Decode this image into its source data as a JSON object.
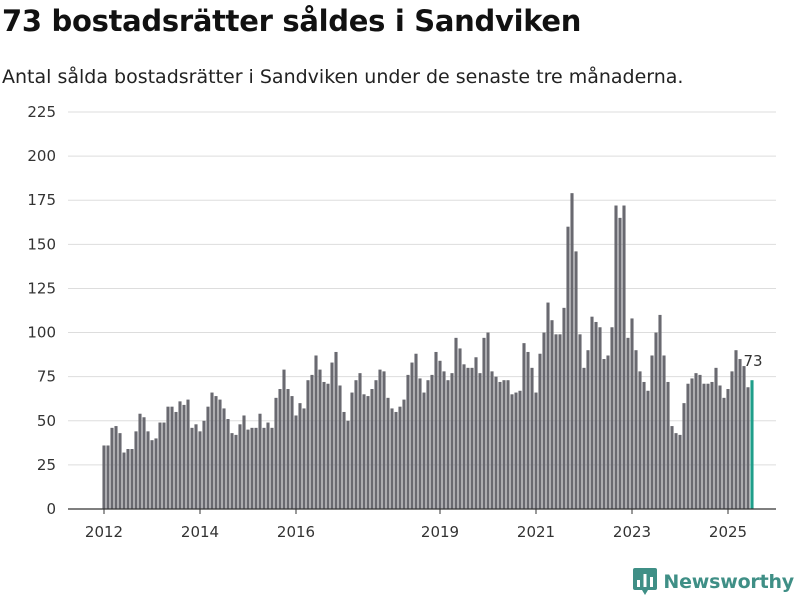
{
  "header": {
    "title": "73 bostadsrätter såldes i Sandviken",
    "subtitle": "Antal sålda bostadsrätter i Sandviken under de senaste tre månaderna."
  },
  "brand": {
    "name": "Newsworthy",
    "color": "#3f8f86"
  },
  "colors": {
    "bar": "#696970",
    "highlight": "#1f9e8a",
    "grid": "#dddddd"
  },
  "chart_data": {
    "type": "bar",
    "title": "73 bostadsrätter såldes i Sandviken",
    "subtitle": "Antal sålda bostadsrätter i Sandviken under de senaste tre månaderna.",
    "xlabel": "",
    "ylabel": "",
    "ylim": [
      0,
      225
    ],
    "yticks": [
      0,
      25,
      50,
      75,
      100,
      125,
      150,
      175,
      200,
      225
    ],
    "xticks": [
      "2012",
      "2014",
      "2016",
      "2019",
      "2021",
      "2023",
      "2025"
    ],
    "grid": true,
    "start": "2012-01",
    "frequency": "monthly",
    "highlight_label": "73",
    "values": [
      36,
      36,
      46,
      47,
      43,
      32,
      34,
      34,
      44,
      54,
      52,
      44,
      39,
      40,
      49,
      49,
      58,
      58,
      55,
      61,
      59,
      62,
      46,
      48,
      44,
      50,
      58,
      66,
      64,
      62,
      57,
      51,
      43,
      42,
      48,
      53,
      45,
      46,
      46,
      54,
      46,
      49,
      46,
      63,
      68,
      79,
      68,
      64,
      53,
      60,
      57,
      73,
      76,
      87,
      79,
      72,
      71,
      83,
      89,
      70,
      55,
      50,
      66,
      73,
      77,
      65,
      64,
      68,
      73,
      79,
      78,
      63,
      57,
      55,
      58,
      62,
      76,
      83,
      88,
      74,
      66,
      73,
      76,
      89,
      84,
      78,
      73,
      77,
      97,
      91,
      82,
      80,
      80,
      86,
      77,
      97,
      100,
      78,
      75,
      72,
      73,
      73,
      65,
      66,
      67,
      94,
      89,
      80,
      66,
      88,
      100,
      117,
      107,
      99,
      99,
      114,
      160,
      179,
      146,
      99,
      80,
      90,
      109,
      106,
      103,
      85,
      87,
      103,
      172,
      165,
      172,
      97,
      108,
      90,
      78,
      72,
      67,
      87,
      100,
      110,
      87,
      72,
      47,
      43,
      42,
      60,
      71,
      74,
      77,
      76,
      71,
      71,
      72,
      80,
      70,
      63,
      68,
      78,
      90,
      85,
      81,
      69,
      73
    ]
  }
}
